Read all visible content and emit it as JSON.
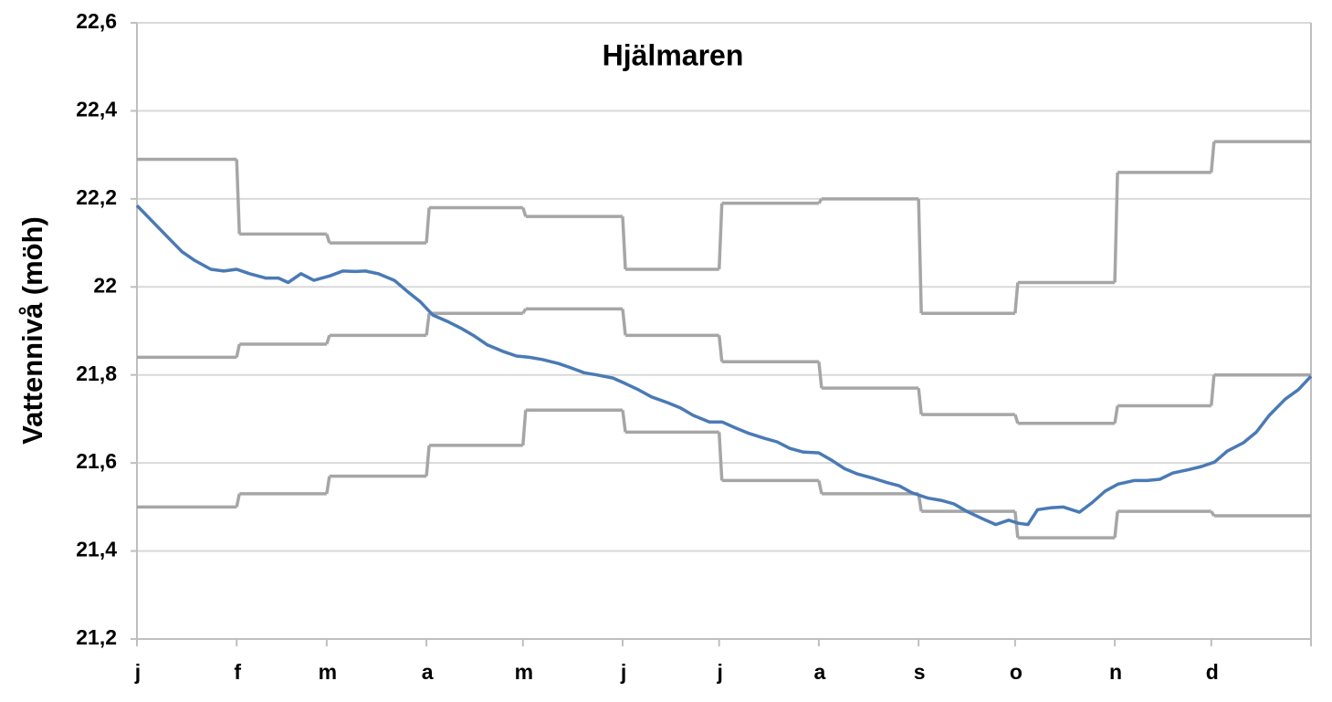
{
  "chart_data": {
    "type": "line",
    "title": "Hjälmaren",
    "y_label": "Vattennivå (möh)",
    "xlim": [
      0,
      365
    ],
    "xticks": [
      {
        "value": 0,
        "label": "j"
      },
      {
        "value": 31,
        "label": "f"
      },
      {
        "value": 59,
        "label": "m"
      },
      {
        "value": 90,
        "label": "a"
      },
      {
        "value": 120,
        "label": "m"
      },
      {
        "value": 151,
        "label": "j"
      },
      {
        "value": 181,
        "label": "j"
      },
      {
        "value": 212,
        "label": "a"
      },
      {
        "value": 243,
        "label": "s"
      },
      {
        "value": 273,
        "label": "o"
      },
      {
        "value": 304,
        "label": "n"
      },
      {
        "value": 334,
        "label": "d"
      }
    ],
    "ylim": [
      21.2,
      22.6
    ],
    "yticks": [
      {
        "value": 21.2,
        "label": "21,2"
      },
      {
        "value": 21.4,
        "label": "21,4"
      },
      {
        "value": 21.6,
        "label": "21,6"
      },
      {
        "value": 21.8,
        "label": "21,8"
      },
      22,
      {
        "value": 22.2,
        "label": "22,2"
      },
      {
        "value": 22.4,
        "label": "22,4"
      },
      {
        "value": 22.6,
        "label": "22,6"
      }
    ],
    "grid": true,
    "series": [
      {
        "color": "#a6a6a6",
        "step": true,
        "x": [
          0,
          31,
          59,
          90,
          120,
          151,
          181,
          212,
          243,
          273,
          304,
          334
        ],
        "values": [
          22.29,
          22.12,
          22.1,
          22.18,
          22.16,
          22.04,
          22.19,
          22.2,
          21.94,
          22.01,
          22.26,
          22.33
        ]
      },
      {
        "color": "#a6a6a6",
        "step": true,
        "x": [
          0,
          31,
          59,
          90,
          120,
          151,
          181,
          212,
          243,
          273,
          304,
          334
        ],
        "values": [
          21.84,
          21.87,
          21.89,
          21.94,
          21.95,
          21.89,
          21.83,
          21.77,
          21.71,
          21.69,
          21.73,
          21.8
        ]
      },
      {
        "color": "#a6a6a6",
        "step": true,
        "x": [
          0,
          31,
          59,
          90,
          120,
          151,
          181,
          212,
          243,
          273,
          304,
          334
        ],
        "values": [
          21.5,
          21.53,
          21.57,
          21.64,
          21.72,
          21.67,
          21.56,
          21.53,
          21.49,
          21.43,
          21.49,
          21.48
        ]
      },
      {
        "color": "#4a7ab5",
        "step": false,
        "x": [
          0,
          6,
          10,
          14,
          18,
          23,
          27,
          31,
          35,
          40,
          44,
          47,
          51,
          55,
          60,
          64,
          68,
          71,
          75,
          80,
          84,
          88,
          92,
          97,
          101,
          105,
          109,
          114,
          118,
          122,
          126,
          131,
          135,
          139,
          143,
          148,
          152,
          156,
          160,
          165,
          169,
          173,
          178,
          182,
          186,
          190,
          195,
          199,
          203,
          207,
          212,
          216,
          220,
          224,
          229,
          233,
          237,
          241,
          246,
          250,
          254,
          258,
          263,
          267,
          271,
          274,
          277,
          280,
          284,
          288,
          293,
          297,
          301,
          305,
          310,
          314,
          318,
          322,
          327,
          331,
          335,
          339,
          344,
          348,
          352,
          357,
          361,
          365
        ],
        "values": [
          22.185,
          22.14,
          22.11,
          22.08,
          22.06,
          22.04,
          22.036,
          22.04,
          22.03,
          22.02,
          22.02,
          22.01,
          22.03,
          22.015,
          22.025,
          22.036,
          22.035,
          22.036,
          22.03,
          22.015,
          21.99,
          21.967,
          21.936,
          21.92,
          21.905,
          21.888,
          21.868,
          21.853,
          21.843,
          21.84,
          21.835,
          21.826,
          21.816,
          21.805,
          21.8,
          21.793,
          21.78,
          21.766,
          21.75,
          21.737,
          21.725,
          21.708,
          21.693,
          21.693,
          21.68,
          21.668,
          21.656,
          21.648,
          21.633,
          21.625,
          21.623,
          21.606,
          21.587,
          21.575,
          21.565,
          21.556,
          21.548,
          21.532,
          21.52,
          21.515,
          21.507,
          21.49,
          21.473,
          21.46,
          21.47,
          21.463,
          21.46,
          21.494,
          21.498,
          21.5,
          21.488,
          21.51,
          21.536,
          21.552,
          21.56,
          21.56,
          21.563,
          21.577,
          21.585,
          21.592,
          21.602,
          21.627,
          21.646,
          21.67,
          21.708,
          21.745,
          21.766,
          21.797
        ]
      }
    ]
  }
}
